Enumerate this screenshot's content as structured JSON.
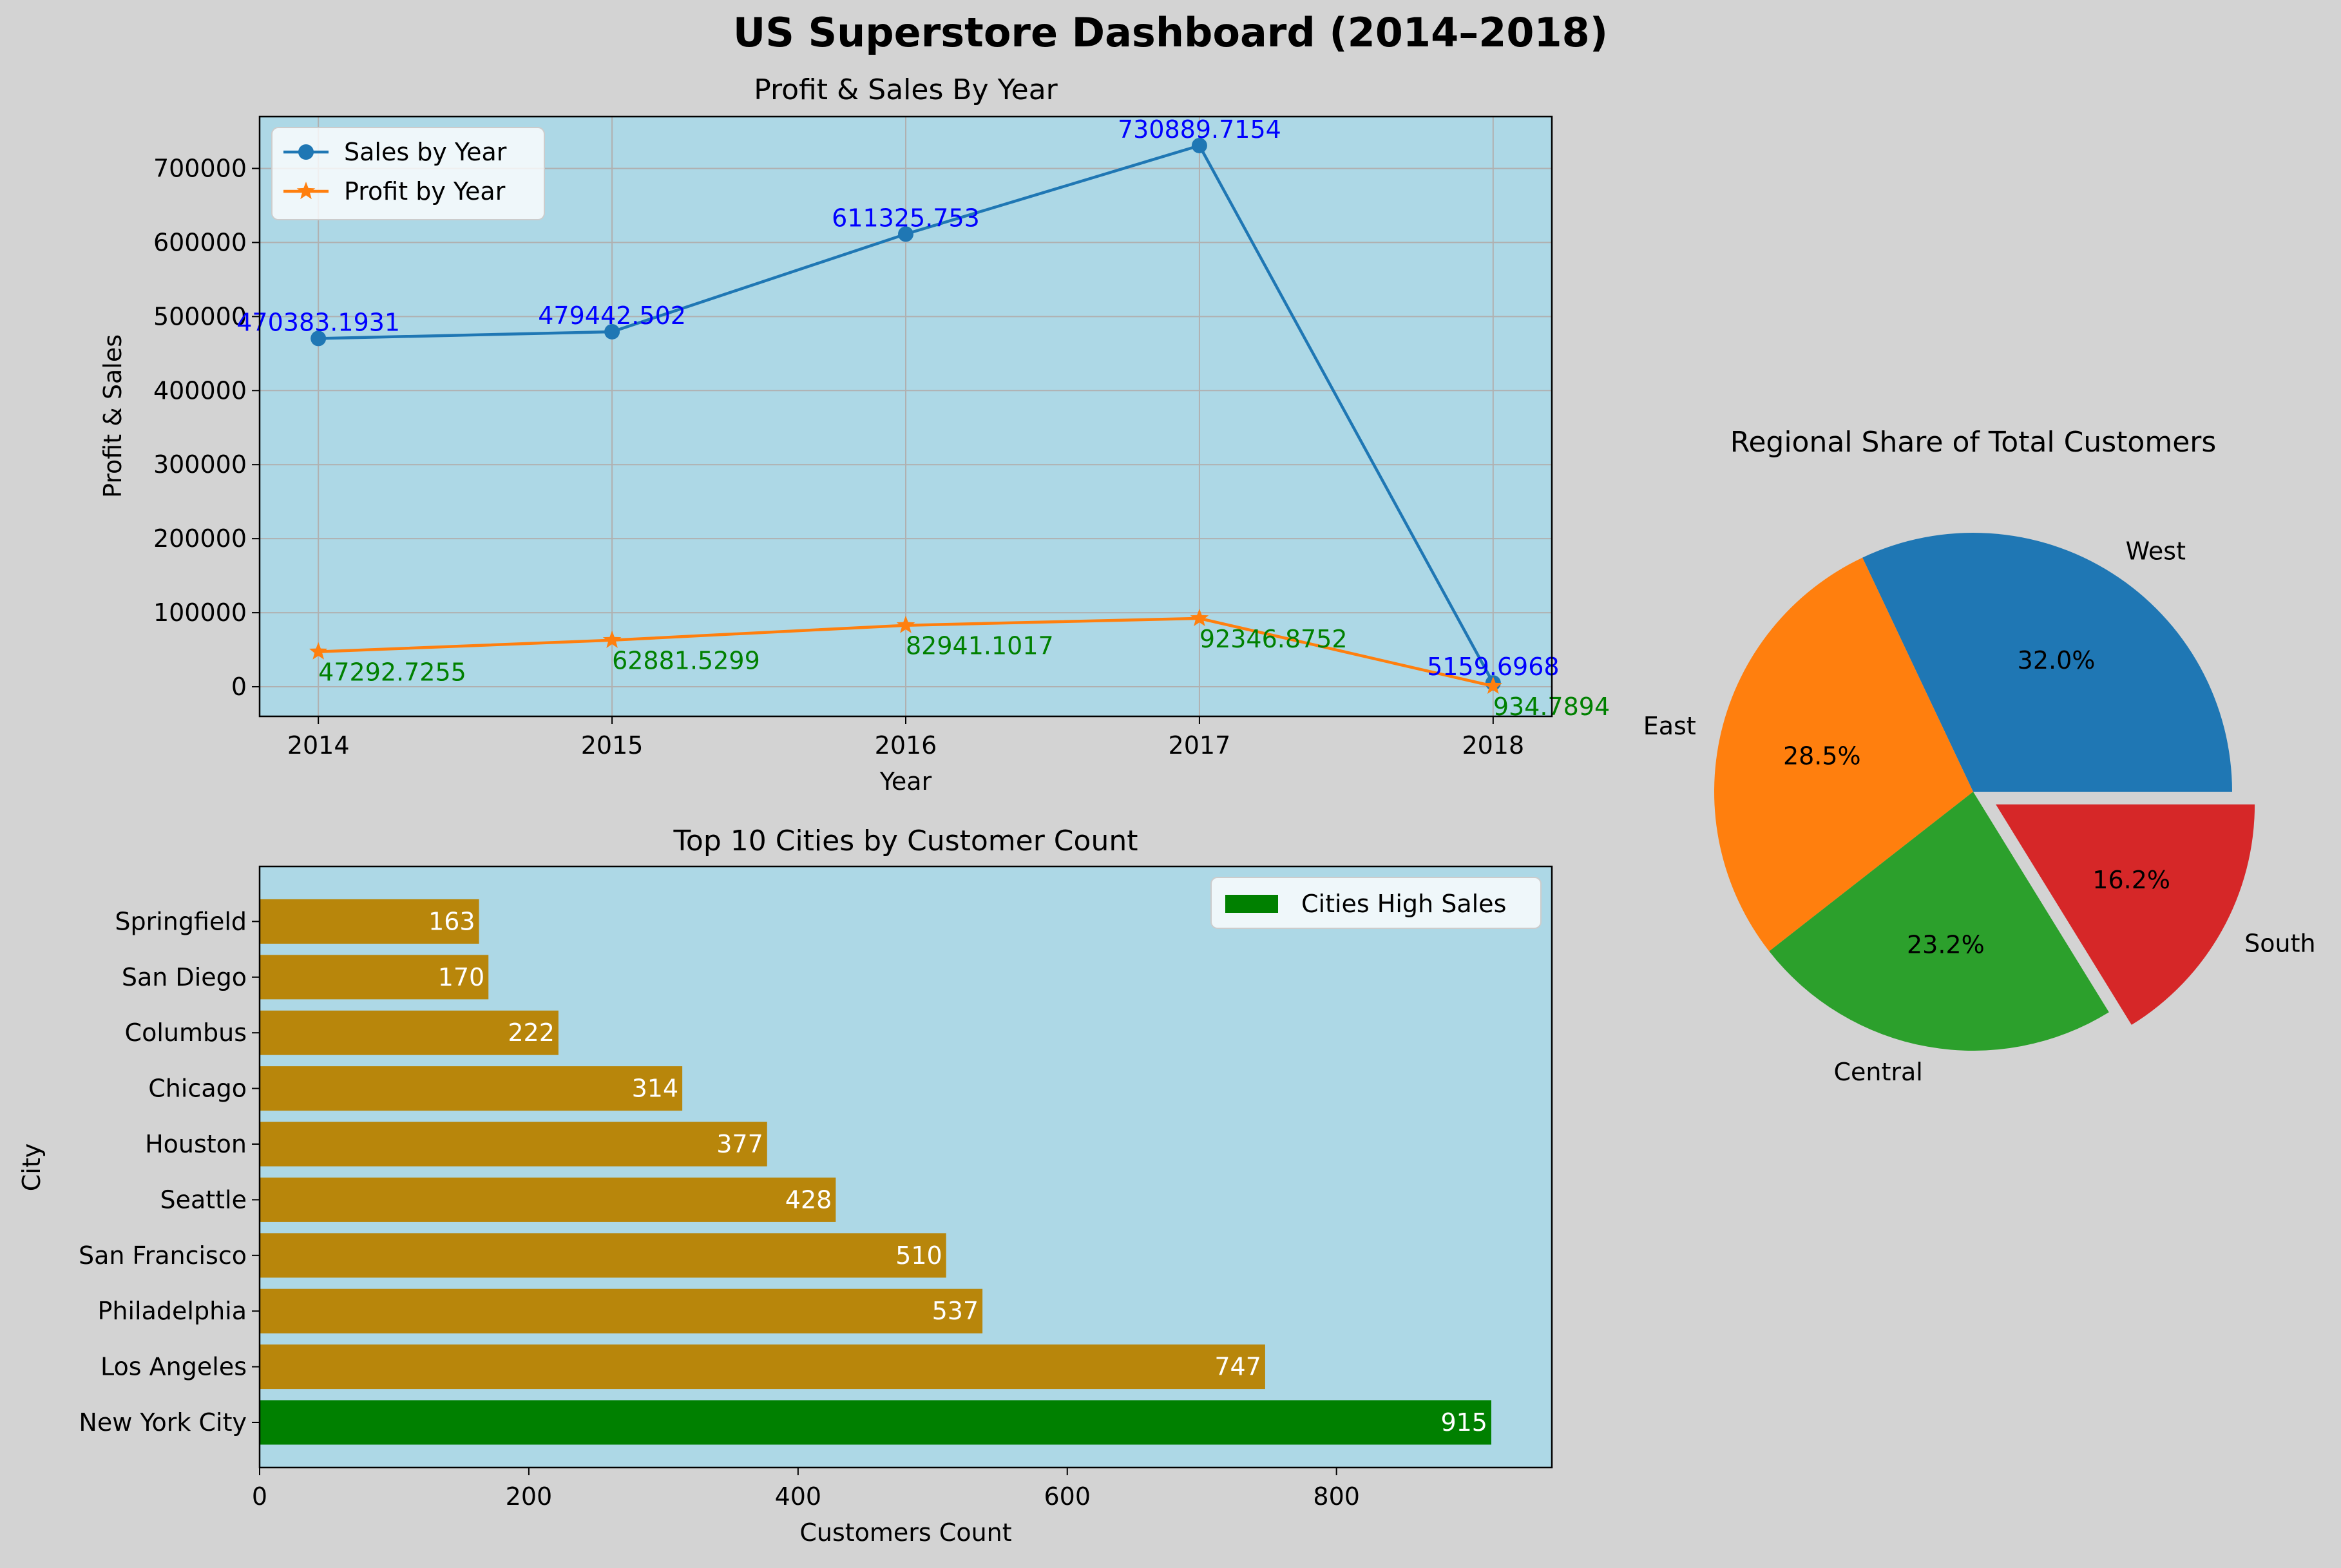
{
  "title": "US Superstore Dashboard (2014–2018)",
  "colors": {
    "figure_bg": "#d3d3d3",
    "axes_bg": "#add8e6",
    "sales": "#1f77b4",
    "profit": "#ff7f0e",
    "sales_label": "#0000ff",
    "profit_label": "#008000",
    "bar": "#b8860b",
    "bar_highlight": "#008000",
    "pie": [
      "#1f77b4",
      "#ff7f0e",
      "#2ca02c",
      "#d62728"
    ]
  },
  "chart_data": [
    {
      "type": "line",
      "title": "Profit & Sales By Year",
      "xlabel": "Year",
      "ylabel": "Profit & Sales",
      "x": [
        2014,
        2015,
        2016,
        2017,
        2018
      ],
      "xticks": [
        "2014",
        "2015",
        "2016",
        "2017",
        "2018"
      ],
      "xlim": [
        2013.8,
        2018.2
      ],
      "ylim": [
        -40000,
        770000
      ],
      "yticks": [
        "0",
        "100000",
        "200000",
        "300000",
        "400000",
        "500000",
        "600000",
        "700000"
      ],
      "grid": true,
      "legend": "upper-left",
      "series": [
        {
          "name": "Sales by Year",
          "values": [
            470383.1931,
            479442.502,
            611325.753,
            730889.7154,
            5159.6968
          ],
          "labels": [
            "470383.1931",
            "479442.502",
            "611325.753",
            "730889.7154",
            "5159.6968"
          ],
          "marker": "circle"
        },
        {
          "name": "Profit by Year",
          "values": [
            47292.7255,
            62881.5299,
            82941.1017,
            92346.8752,
            934.7894
          ],
          "labels": [
            "47292.7255",
            "62881.5299",
            "82941.1017",
            "92346.8752",
            "934.7894"
          ],
          "marker": "star"
        }
      ]
    },
    {
      "type": "bar",
      "orientation": "horizontal",
      "title": "Top 10 Cities by Customer Count",
      "xlabel": "Customers Count",
      "ylabel": "City",
      "categories": [
        "New York City",
        "Los Angeles",
        "Philadelphia",
        "San Francisco",
        "Seattle",
        "Houston",
        "Chicago",
        "Columbus",
        "San Diego",
        "Springfield"
      ],
      "values": [
        915,
        747,
        537,
        510,
        428,
        377,
        314,
        222,
        170,
        163
      ],
      "labels": [
        "915",
        "747",
        "537",
        "510",
        "428",
        "377",
        "314",
        "222",
        "170",
        "163"
      ],
      "highlight": "New York City",
      "xlim": [
        0,
        960
      ],
      "xticks": [
        "0",
        "200",
        "400",
        "600",
        "800"
      ],
      "legend": "upper-right",
      "legend_label": "Cities High Sales"
    },
    {
      "type": "pie",
      "title": "Regional Share of Total Customers",
      "categories": [
        "West",
        "East",
        "Central",
        "South"
      ],
      "values": [
        32.0,
        28.5,
        23.2,
        16.2
      ],
      "labels": [
        "32.0%",
        "28.5%",
        "23.2%",
        "16.2%"
      ],
      "exploded": "South"
    }
  ]
}
